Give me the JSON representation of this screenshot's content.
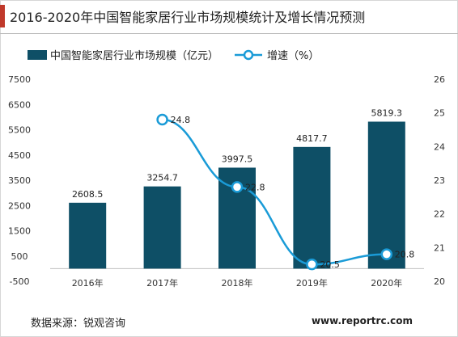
{
  "title": "2016-2020年中国智能家居行业市场规模统计及增长情况预测",
  "source": "数据来源：锐观咨询",
  "website": "www.reportrc.com",
  "colors": {
    "bar": "#0e4f66",
    "line": "#1a9bd7",
    "accent": "#c0392b"
  },
  "chart_data": {
    "type": "bar",
    "categories": [
      "2016年",
      "2017年",
      "2018年",
      "2019年",
      "2020年"
    ],
    "series": [
      {
        "name": "中国智能家居行业市场规模（亿元）",
        "type": "bar",
        "axis": "left",
        "values": [
          2608.5,
          3254.7,
          3997.5,
          4817.7,
          5819.3
        ],
        "labels": [
          "2608.5",
          "3254.7",
          "3997.5",
          "4817.7",
          "5819.3"
        ]
      },
      {
        "name": "增速（%）",
        "type": "line",
        "axis": "right",
        "values": [
          null,
          24.8,
          22.8,
          20.5,
          20.8
        ],
        "labels": [
          "",
          "24.8",
          "22.8",
          "20.5",
          "20.8"
        ]
      }
    ],
    "y_left": {
      "min": -500,
      "max": 7500,
      "ticks": [
        "-500",
        "500",
        "1500",
        "2500",
        "3500",
        "4500",
        "5500",
        "6500",
        "7500"
      ]
    },
    "y_right": {
      "min": 20,
      "max": 26,
      "ticks": [
        "20",
        "21",
        "22",
        "23",
        "24",
        "25",
        "26"
      ]
    },
    "grid": false,
    "legend": "top"
  }
}
